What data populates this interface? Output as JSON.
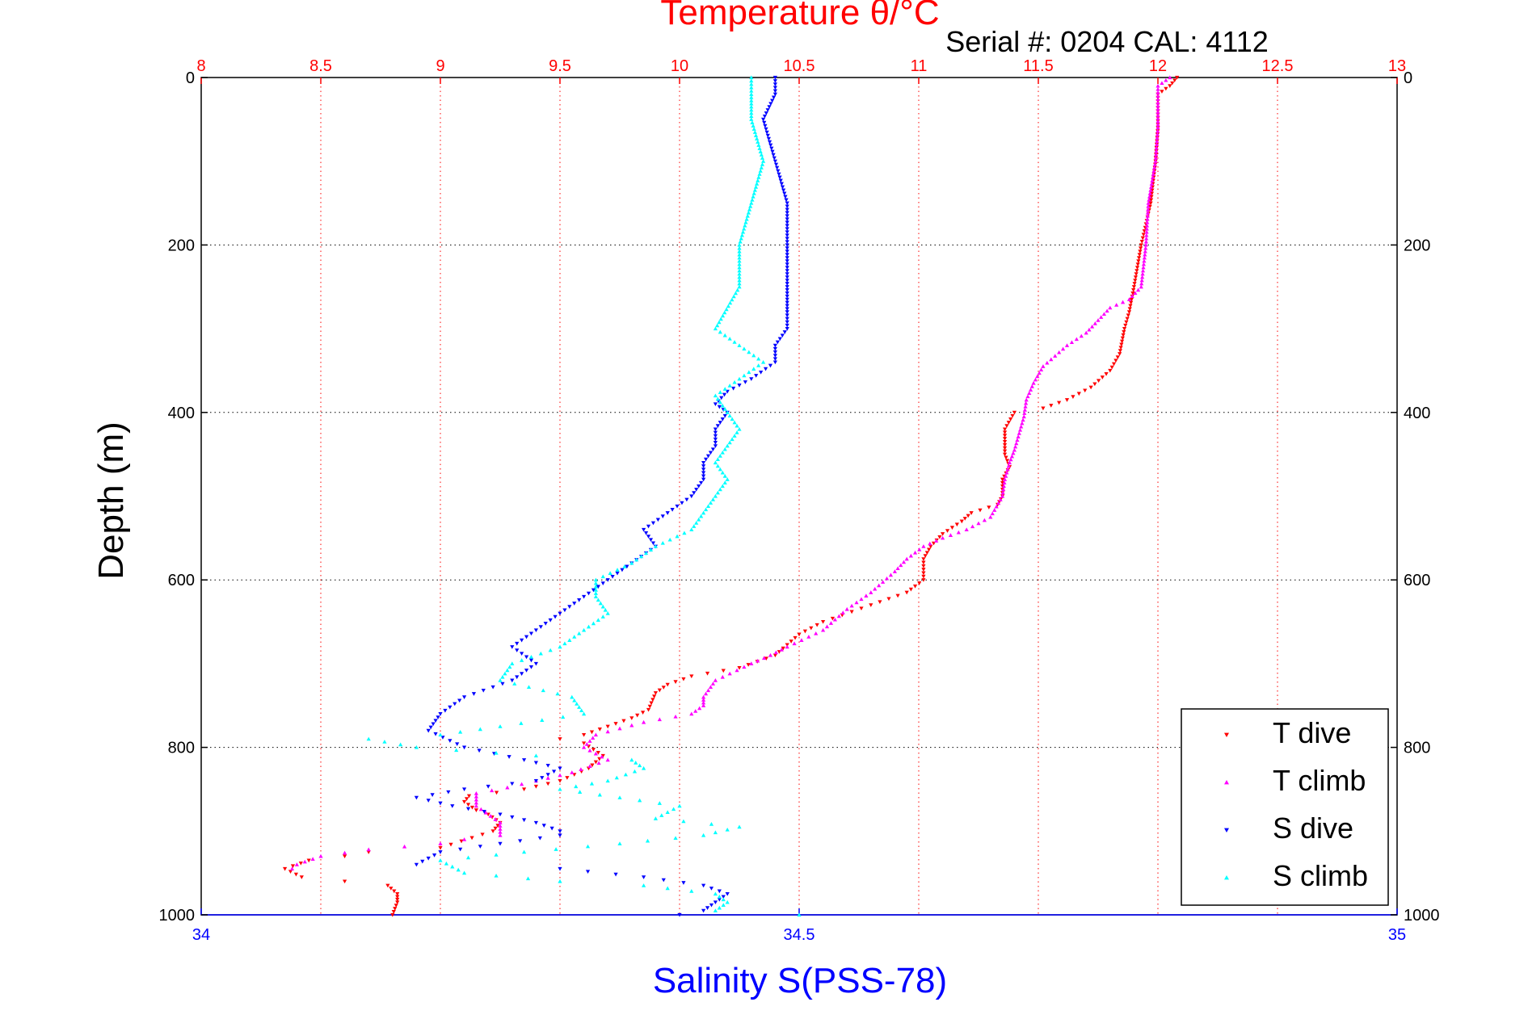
{
  "chart_data": {
    "type": "scatter",
    "title": "Temperature θ/°C",
    "subtitle": "Serial #: 0204  CAL: 4112",
    "xlabel_top": "Temperature θ/°C",
    "xlabel_bottom": "Salinity S(PSS-78)",
    "ylabel": "Depth (m)",
    "temperature_axis": {
      "range": [
        8,
        13
      ],
      "ticks": [
        "8",
        "8.5",
        "9",
        "9.5",
        "10",
        "10.5",
        "11",
        "11.5",
        "12",
        "12.5",
        "13"
      ]
    },
    "salinity_axis": {
      "range": [
        34,
        35
      ],
      "ticks": [
        "34",
        "34.5",
        "35"
      ]
    },
    "depth_axis": {
      "range": [
        0,
        1000
      ],
      "reversed": true,
      "ticks": [
        "0",
        "200",
        "400",
        "600",
        "800",
        "1000"
      ]
    },
    "grid": true,
    "legend_position": "bottom-right",
    "series": [
      {
        "name": "T dive",
        "axis": "temperature",
        "color": "#ff0000",
        "marker": "triangle-down",
        "points": [
          [
            12.08,
            0
          ],
          [
            12.05,
            10
          ],
          [
            12.0,
            20
          ],
          [
            12.0,
            60
          ],
          [
            11.99,
            100
          ],
          [
            11.97,
            150
          ],
          [
            11.95,
            175
          ],
          [
            11.93,
            200
          ],
          [
            11.9,
            250
          ],
          [
            11.88,
            280
          ],
          [
            11.86,
            300
          ],
          [
            11.84,
            330
          ],
          [
            11.8,
            350
          ],
          [
            11.72,
            370
          ],
          [
            11.62,
            385
          ],
          [
            11.52,
            395
          ],
          [
            11.4,
            400
          ],
          [
            11.36,
            420
          ],
          [
            11.36,
            450
          ],
          [
            11.38,
            465
          ],
          [
            11.35,
            480
          ],
          [
            11.35,
            500
          ],
          [
            11.33,
            510
          ],
          [
            11.22,
            520
          ],
          [
            11.18,
            530
          ],
          [
            11.1,
            545
          ],
          [
            11.05,
            560
          ],
          [
            11.02,
            575
          ],
          [
            11.02,
            600
          ],
          [
            10.95,
            615
          ],
          [
            10.8,
            630
          ],
          [
            10.6,
            650
          ],
          [
            10.5,
            665
          ],
          [
            10.4,
            690
          ],
          [
            10.25,
            705
          ],
          [
            10.05,
            715
          ],
          [
            9.95,
            725
          ],
          [
            9.9,
            735
          ],
          [
            9.87,
            755
          ],
          [
            9.8,
            765
          ],
          [
            9.7,
            775
          ],
          [
            9.6,
            785
          ],
          [
            9.5,
            790
          ],
          [
            9.6,
            795
          ],
          [
            9.68,
            810
          ],
          [
            9.62,
            825
          ],
          [
            9.5,
            840
          ],
          [
            9.35,
            850
          ],
          [
            9.12,
            858
          ],
          [
            9.1,
            865
          ],
          [
            9.15,
            875
          ],
          [
            9.2,
            880
          ],
          [
            9.25,
            890
          ],
          [
            9.22,
            900
          ],
          [
            9.0,
            920
          ],
          [
            8.7,
            925
          ],
          [
            8.6,
            930
          ],
          [
            8.45,
            935
          ],
          [
            8.35,
            945
          ],
          [
            8.42,
            955
          ],
          [
            8.6,
            960
          ],
          [
            8.78,
            965
          ],
          [
            8.82,
            975
          ],
          [
            8.82,
            985
          ],
          [
            8.8,
            1000
          ]
        ]
      },
      {
        "name": "T climb",
        "axis": "temperature",
        "color": "#ff00ff",
        "marker": "triangle-up",
        "points": [
          [
            12.05,
            0
          ],
          [
            12.0,
            10
          ],
          [
            12.0,
            30
          ],
          [
            12.0,
            60
          ],
          [
            11.99,
            100
          ],
          [
            11.96,
            150
          ],
          [
            11.95,
            200
          ],
          [
            11.93,
            250
          ],
          [
            11.88,
            265
          ],
          [
            11.8,
            275
          ],
          [
            11.75,
            290
          ],
          [
            11.7,
            305
          ],
          [
            11.62,
            320
          ],
          [
            11.52,
            345
          ],
          [
            11.48,
            365
          ],
          [
            11.45,
            385
          ],
          [
            11.44,
            405
          ],
          [
            11.42,
            425
          ],
          [
            11.4,
            445
          ],
          [
            11.38,
            460
          ],
          [
            11.36,
            480
          ],
          [
            11.35,
            500
          ],
          [
            11.3,
            525
          ],
          [
            11.2,
            540
          ],
          [
            11.1,
            550
          ],
          [
            11.02,
            560
          ],
          [
            10.95,
            575
          ],
          [
            10.9,
            590
          ],
          [
            10.8,
            615
          ],
          [
            10.7,
            635
          ],
          [
            10.6,
            660
          ],
          [
            10.45,
            680
          ],
          [
            10.38,
            690
          ],
          [
            10.3,
            700
          ],
          [
            10.15,
            720
          ],
          [
            10.1,
            740
          ],
          [
            10.1,
            750
          ],
          [
            10.05,
            760
          ],
          [
            9.85,
            770
          ],
          [
            9.65,
            785
          ],
          [
            9.6,
            800
          ],
          [
            9.7,
            815
          ],
          [
            9.55,
            830
          ],
          [
            9.4,
            840
          ],
          [
            9.28,
            848
          ],
          [
            9.15,
            855
          ],
          [
            9.15,
            870
          ],
          [
            9.25,
            890
          ],
          [
            9.25,
            905
          ],
          [
            9.1,
            910
          ],
          [
            9.0,
            915
          ],
          [
            8.7,
            922
          ],
          [
            8.5,
            930
          ],
          [
            8.4,
            940
          ],
          [
            8.38,
            945
          ]
        ]
      },
      {
        "name": "S dive",
        "axis": "salinity",
        "color": "#0000ff",
        "marker": "triangle-down",
        "points": [
          [
            34.48,
            0
          ],
          [
            34.48,
            20
          ],
          [
            34.47,
            50
          ],
          [
            34.48,
            100
          ],
          [
            34.49,
            150
          ],
          [
            34.49,
            200
          ],
          [
            34.49,
            250
          ],
          [
            34.49,
            280
          ],
          [
            34.49,
            300
          ],
          [
            34.48,
            320
          ],
          [
            34.48,
            340
          ],
          [
            34.46,
            360
          ],
          [
            34.44,
            375
          ],
          [
            34.43,
            390
          ],
          [
            34.44,
            400
          ],
          [
            34.43,
            420
          ],
          [
            34.43,
            440
          ],
          [
            34.42,
            460
          ],
          [
            34.42,
            480
          ],
          [
            34.41,
            500
          ],
          [
            34.39,
            520
          ],
          [
            34.37,
            540
          ],
          [
            34.38,
            560
          ],
          [
            34.36,
            580
          ],
          [
            34.34,
            600
          ],
          [
            34.32,
            620
          ],
          [
            34.3,
            640
          ],
          [
            34.28,
            660
          ],
          [
            34.26,
            680
          ],
          [
            34.28,
            700
          ],
          [
            34.26,
            720
          ],
          [
            34.22,
            740
          ],
          [
            34.2,
            760
          ],
          [
            34.19,
            780
          ],
          [
            34.22,
            800
          ],
          [
            34.27,
            815
          ],
          [
            34.3,
            825
          ],
          [
            34.28,
            840
          ],
          [
            34.22,
            850
          ],
          [
            34.18,
            860
          ],
          [
            34.21,
            870
          ],
          [
            34.25,
            880
          ],
          [
            34.28,
            890
          ],
          [
            34.3,
            900
          ],
          [
            34.3,
            905
          ],
          [
            34.25,
            915
          ],
          [
            34.2,
            925
          ],
          [
            34.18,
            940
          ],
          [
            34.3,
            945
          ],
          [
            34.37,
            955
          ],
          [
            34.42,
            965
          ],
          [
            34.44,
            975
          ],
          [
            34.43,
            985
          ],
          [
            34.42,
            995
          ],
          [
            34.4,
            1000
          ]
        ]
      },
      {
        "name": "S climb",
        "axis": "salinity",
        "color": "#00ffff",
        "marker": "triangle-up",
        "points": [
          [
            34.46,
            0
          ],
          [
            34.46,
            20
          ],
          [
            34.46,
            50
          ],
          [
            34.47,
            100
          ],
          [
            34.46,
            150
          ],
          [
            34.45,
            200
          ],
          [
            34.45,
            250
          ],
          [
            34.43,
            300
          ],
          [
            34.45,
            320
          ],
          [
            34.47,
            340
          ],
          [
            34.45,
            360
          ],
          [
            34.43,
            380
          ],
          [
            34.44,
            400
          ],
          [
            34.45,
            420
          ],
          [
            34.44,
            440
          ],
          [
            34.43,
            460
          ],
          [
            34.44,
            480
          ],
          [
            34.43,
            500
          ],
          [
            34.42,
            520
          ],
          [
            34.41,
            540
          ],
          [
            34.38,
            560
          ],
          [
            34.36,
            580
          ],
          [
            34.33,
            600
          ],
          [
            34.33,
            620
          ],
          [
            34.34,
            640
          ],
          [
            34.32,
            660
          ],
          [
            34.3,
            680
          ],
          [
            34.26,
            700
          ],
          [
            34.25,
            720
          ],
          [
            34.31,
            740
          ],
          [
            34.32,
            760
          ],
          [
            34.25,
            775
          ],
          [
            34.2,
            785
          ],
          [
            34.14,
            790
          ],
          [
            34.18,
            800
          ],
          [
            34.28,
            810
          ],
          [
            34.36,
            815
          ],
          [
            34.37,
            825
          ],
          [
            34.34,
            840
          ],
          [
            34.3,
            850
          ],
          [
            34.35,
            860
          ],
          [
            34.4,
            870
          ],
          [
            34.38,
            885
          ],
          [
            34.45,
            895
          ],
          [
            34.42,
            905
          ],
          [
            34.35,
            915
          ],
          [
            34.27,
            925
          ],
          [
            34.2,
            935
          ],
          [
            34.22,
            950
          ],
          [
            34.3,
            960
          ],
          [
            34.37,
            965
          ],
          [
            34.43,
            975
          ],
          [
            34.44,
            985
          ],
          [
            34.43,
            995
          ],
          [
            34.5,
            1000
          ]
        ]
      }
    ]
  }
}
